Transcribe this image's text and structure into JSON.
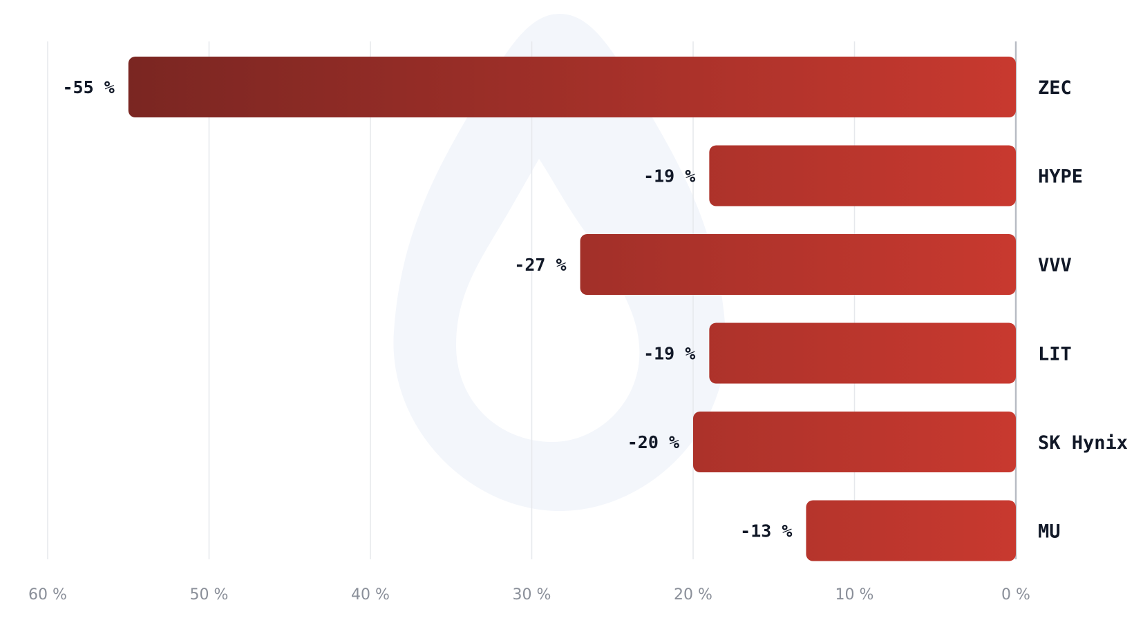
{
  "chart_data": {
    "type": "bar",
    "orientation": "horizontal",
    "direction": "right-to-left",
    "categories": [
      "ZEC",
      "HYPE",
      "VVV",
      "LIT",
      "SK Hynix",
      "MU"
    ],
    "values": [
      -55,
      -19,
      -27,
      -19,
      -20,
      -13
    ],
    "value_labels": [
      "-55 %",
      "-19 %",
      "-27 %",
      "-19 %",
      "-20 %",
      "-13 %"
    ],
    "x_ticks": [
      60,
      50,
      40,
      30,
      20,
      10,
      0
    ],
    "x_tick_labels": [
      "60 %",
      "50 %",
      "40 %",
      "30 %",
      "20 %",
      "10 %",
      "0 %"
    ],
    "xlim": [
      60,
      0
    ],
    "grid": "vertical",
    "title": "",
    "xlabel": "",
    "ylabel": ""
  },
  "colors": {
    "bar_start": "#7a2622",
    "bar_end": "#c8392f",
    "grid": "#e6e8ec",
    "axis": "#b8bcc4",
    "watermark": "#f3f6fb"
  },
  "watermark_icon": "drop-logo-icon"
}
